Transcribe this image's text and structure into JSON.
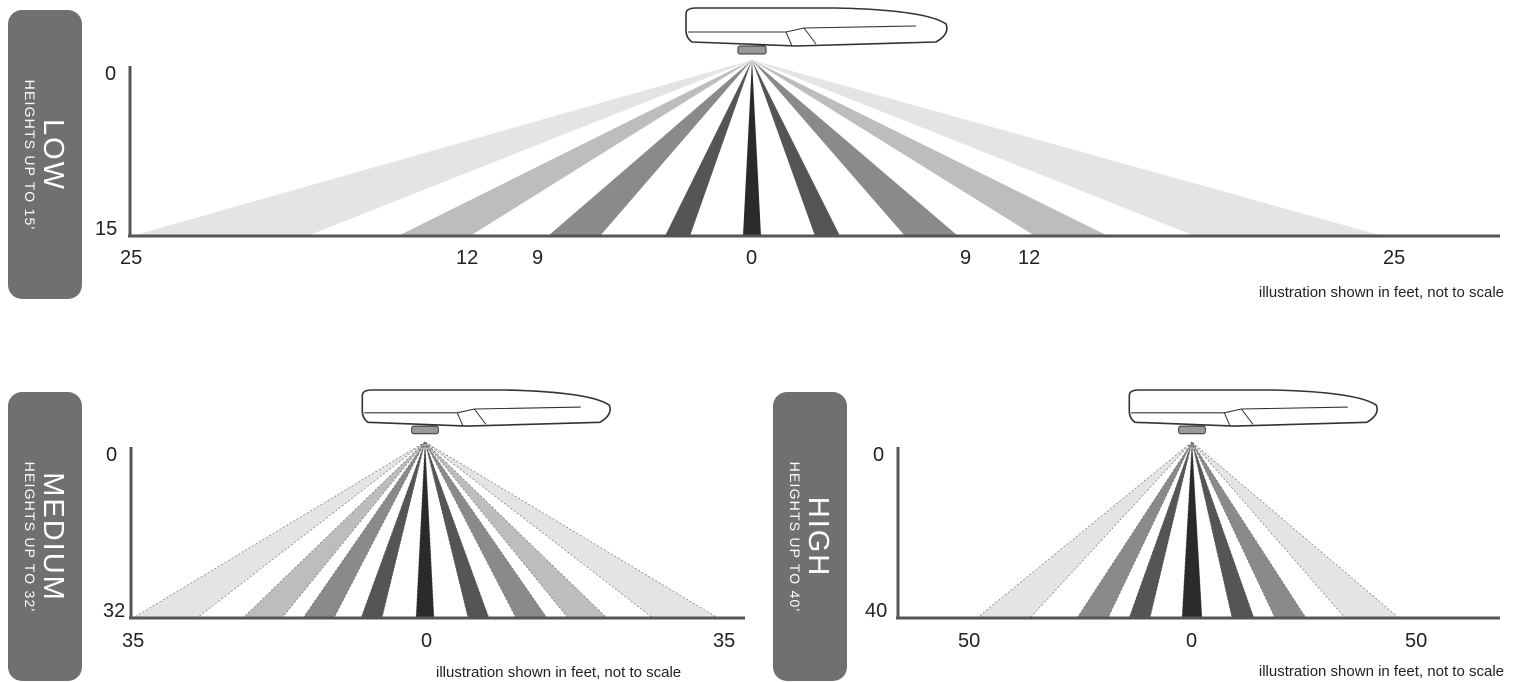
{
  "panels": [
    {
      "id": "low",
      "tab": {
        "big": "LOW",
        "small": "HEIGHTS UP TO 15'"
      },
      "y_labels": [
        "0",
        "15"
      ],
      "x_labels": [
        "25",
        "12",
        "9",
        "0",
        "9",
        "12",
        "25"
      ],
      "caption": "illustration shown in feet, not to scale"
    },
    {
      "id": "medium",
      "tab": {
        "big": "MEDIUM",
        "small": "HEIGHTS UP TO 32'"
      },
      "y_labels": [
        "0",
        "32"
      ],
      "x_labels": [
        "35",
        "0",
        "35"
      ],
      "caption": "illustration shown in feet, not to scale"
    },
    {
      "id": "high",
      "tab": {
        "big": "HIGH",
        "small": "HEIGHTS UP TO 40'"
      },
      "y_labels": [
        "0",
        "40"
      ],
      "x_labels": [
        "50",
        "0",
        "50"
      ],
      "caption": "illustration shown in feet, not to scale"
    }
  ],
  "colors": {
    "tab": "#707070",
    "axis": "#555555",
    "beam_dark": "#2a2a2a",
    "beam_mid_dark": "#555555",
    "beam_mid": "#8a8a8a",
    "beam_light": "#bdbdbd",
    "beam_lightest": "#e4e4e4"
  }
}
